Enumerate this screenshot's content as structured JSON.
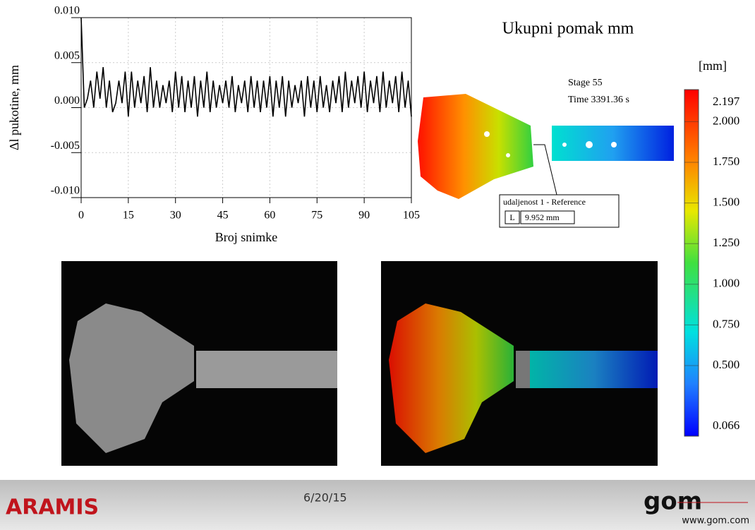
{
  "chart_data": {
    "type": "line",
    "y_label": "Δl pukotine, mm",
    "x_label": "Broj snimke",
    "x": [
      0,
      1,
      2,
      3,
      4,
      5,
      6,
      7,
      8,
      9,
      10,
      11,
      12,
      13,
      14,
      15,
      16,
      17,
      18,
      19,
      20,
      21,
      22,
      23,
      24,
      25,
      26,
      27,
      28,
      29,
      30,
      31,
      32,
      33,
      34,
      35,
      36,
      37,
      38,
      39,
      40,
      41,
      42,
      43,
      44,
      45,
      46,
      47,
      48,
      49,
      50,
      51,
      52,
      53,
      54,
      55,
      56,
      57,
      58,
      59,
      60,
      61,
      62,
      63,
      64,
      65,
      66,
      67,
      68,
      69,
      70,
      71,
      72,
      73,
      74,
      75,
      76,
      77,
      78,
      79,
      80,
      81,
      82,
      83,
      84,
      85,
      86,
      87,
      88,
      89,
      90,
      91,
      92,
      93,
      94,
      95,
      96,
      97,
      98,
      99,
      100,
      101,
      102,
      103,
      104,
      105
    ],
    "series": [
      {
        "color": "#000000",
        "values": [
          0.01,
          0.0,
          0.001,
          0.003,
          0.0,
          0.004,
          0.001,
          0.0045,
          0.0,
          0.003,
          -0.0005,
          0.0005,
          0.003,
          0.0005,
          0.004,
          -0.001,
          0.004,
          0.0,
          0.003,
          0.0005,
          0.0035,
          -0.0005,
          0.0045,
          0.0,
          0.003,
          0.0,
          0.0025,
          0.0005,
          0.003,
          -0.0005,
          0.004,
          0.0,
          0.0035,
          -0.0005,
          0.003,
          0.0,
          0.0035,
          -0.001,
          0.003,
          0.0,
          0.004,
          -0.0005,
          0.003,
          0.0,
          0.0025,
          0.0005,
          0.003,
          0.0,
          0.0035,
          -0.0005,
          0.0025,
          0.0005,
          0.003,
          -0.0005,
          0.0035,
          0.0,
          0.003,
          -0.0005,
          0.003,
          0.0,
          0.0035,
          -0.001,
          0.003,
          0.0,
          0.0035,
          -0.001,
          0.003,
          0.0,
          0.0025,
          0.0005,
          0.003,
          -0.001,
          0.0035,
          0.0,
          0.003,
          -0.0005,
          0.0035,
          0.0,
          0.0025,
          -0.0005,
          0.003,
          0.0005,
          0.0035,
          -0.0005,
          0.004,
          0.0,
          0.003,
          0.0005,
          0.0035,
          0.0,
          0.004,
          -0.0005,
          0.003,
          0.0005,
          0.0035,
          -0.0005,
          0.004,
          0.0,
          0.003,
          0.0005,
          0.0035,
          -0.0005,
          0.004,
          0.0,
          0.003,
          -0.001
        ]
      }
    ],
    "xlim": [
      0,
      105
    ],
    "xticks": [
      0,
      15,
      30,
      45,
      60,
      75,
      90,
      105
    ],
    "ylim": [
      -0.01,
      0.01
    ],
    "yticks": [
      {
        "value": 0.01,
        "label": "0.010"
      },
      {
        "value": 0.005,
        "label": "0.005"
      },
      {
        "value": 0,
        "label": "0.000"
      },
      {
        "value": -0.005,
        "label": "-0.005"
      },
      {
        "value": -0.01,
        "label": "-0.010"
      }
    ],
    "grid": true
  },
  "title": "Ukupni pomak  mm",
  "stage": "Stage 55",
  "time": "Time  3391.36 s",
  "measurement": {
    "name": "udaljenost 1 - Reference",
    "key": "L",
    "value": "9.952 mm"
  },
  "colorbar": {
    "label": "[mm]",
    "lim": [
      0.066,
      2.197
    ],
    "ticks": [
      2.197,
      {
        "value": 2,
        "label": "2.000"
      },
      {
        "value": 1.75,
        "label": "1.750"
      },
      {
        "value": 1.5,
        "label": "1.500"
      },
      {
        "value": 1.25,
        "label": "1.250"
      },
      {
        "value": 1,
        "label": "1.000"
      },
      {
        "value": 0.75,
        "label": "0.750"
      },
      {
        "value": 0.5,
        "label": "0.500"
      },
      0.066
    ]
  },
  "footer": {
    "product": "ARAMIS",
    "date": "6/20/15",
    "logo": "gom",
    "url": "www.gom.com"
  }
}
